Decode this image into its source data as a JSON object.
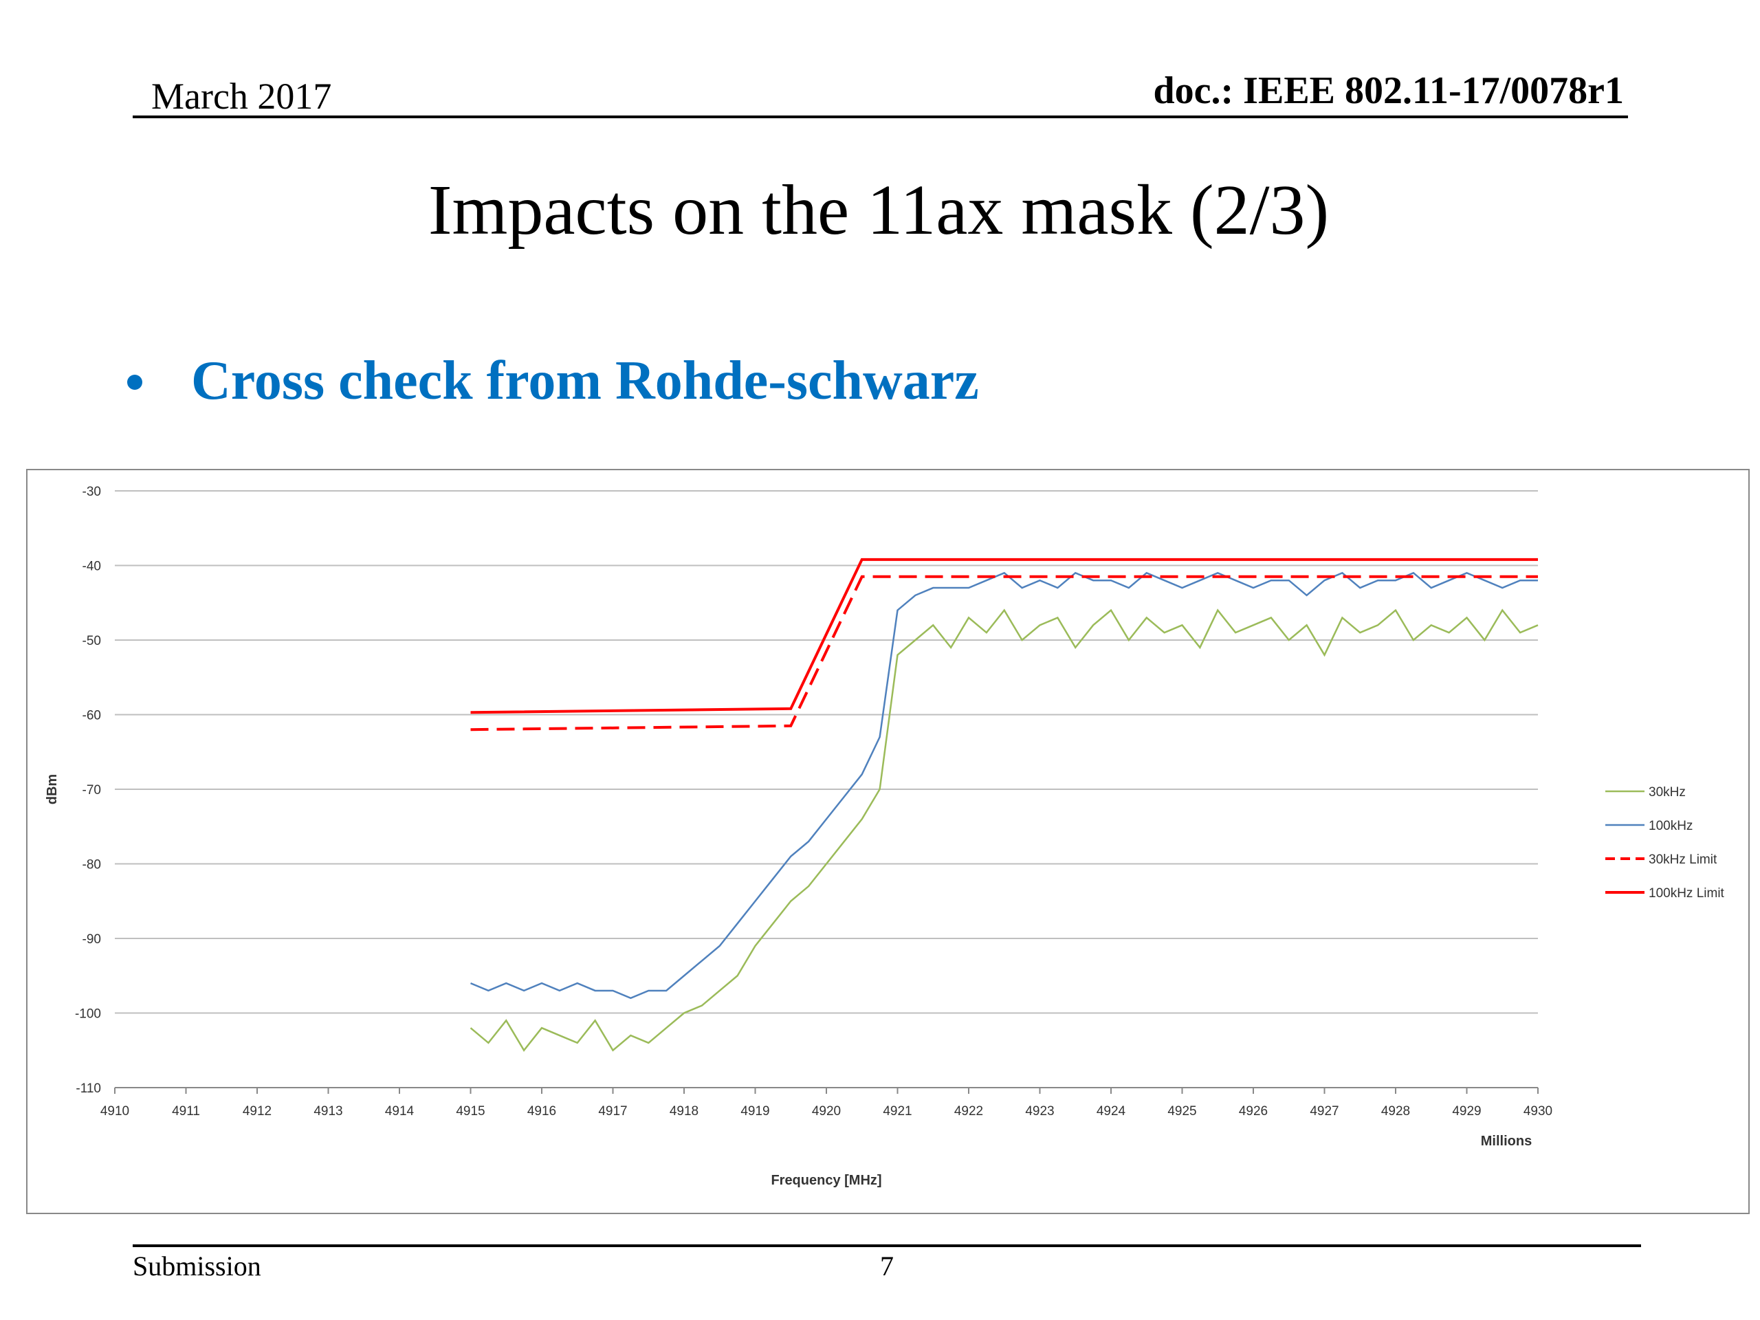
{
  "header": {
    "date": "March 2017",
    "doc": "doc.: IEEE 802.11-17/0078r1"
  },
  "title": "Impacts on the 11ax mask (2/3)",
  "bullets": [
    "Cross check from Rohde-schwarz"
  ],
  "footer": {
    "left": "Submission",
    "page": "7"
  },
  "chart_data": {
    "type": "line",
    "x_label": "Frequency [MHz]",
    "x_unit_label": "Millions",
    "y_label": "dBm",
    "xlim": [
      4910,
      4930
    ],
    "xticks": [
      4910,
      4911,
      4912,
      4913,
      4914,
      4915,
      4916,
      4917,
      4918,
      4919,
      4920,
      4921,
      4922,
      4923,
      4924,
      4925,
      4926,
      4927,
      4928,
      4929,
      4930
    ],
    "ylim": [
      -110,
      -30
    ],
    "yticks": [
      -110,
      -100,
      -90,
      -80,
      -70,
      -60,
      -50,
      -40,
      -30
    ],
    "grid": true,
    "legend": "right",
    "x": [
      4915,
      4915.25,
      4915.5,
      4915.75,
      4916,
      4916.25,
      4916.5,
      4916.75,
      4917,
      4917.25,
      4917.5,
      4917.75,
      4918,
      4918.25,
      4918.5,
      4918.75,
      4919,
      4919.25,
      4919.5,
      4919.75,
      4920,
      4920.25,
      4920.5,
      4920.75,
      4921,
      4921.25,
      4921.5,
      4921.75,
      4922,
      4922.25,
      4922.5,
      4922.75,
      4923,
      4923.25,
      4923.5,
      4923.75,
      4924,
      4924.25,
      4924.5,
      4924.75,
      4925,
      4925.25,
      4925.5,
      4925.75,
      4926,
      4926.25,
      4926.5,
      4926.75,
      4927,
      4927.25,
      4927.5,
      4927.75,
      4928,
      4928.25,
      4928.5,
      4928.75,
      4929,
      4929.25,
      4929.5,
      4929.75,
      4930
    ],
    "series": [
      {
        "name": "30kHz",
        "color": "#9bbb59",
        "dashed": false,
        "values": [
          -102,
          -104,
          -101,
          -105,
          -102,
          -103,
          -104,
          -101,
          -105,
          -103,
          -104,
          -102,
          -100,
          -99,
          -97,
          -95,
          -91,
          -88,
          -85,
          -83,
          -80,
          -77,
          -74,
          -70,
          -52,
          -50,
          -48,
          -51,
          -47,
          -49,
          -46,
          -50,
          -48,
          -47,
          -51,
          -48,
          -46,
          -50,
          -47,
          -49,
          -48,
          -51,
          -46,
          -49,
          -48,
          -47,
          -50,
          -48,
          -52,
          -47,
          -49,
          -48,
          -46,
          -50,
          -48,
          -49,
          -47,
          -50,
          -46,
          -49,
          -48
        ]
      },
      {
        "name": "100kHz",
        "color": "#4f81bd",
        "dashed": false,
        "values": [
          -96,
          -97,
          -96,
          -97,
          -96,
          -97,
          -96,
          -97,
          -97,
          -98,
          -97,
          -97,
          -95,
          -93,
          -91,
          -88,
          -85,
          -82,
          -79,
          -77,
          -74,
          -71,
          -68,
          -63,
          -46,
          -44,
          -43,
          -43,
          -43,
          -42,
          -41,
          -43,
          -42,
          -43,
          -41,
          -42,
          -42,
          -43,
          -41,
          -42,
          -43,
          -42,
          -41,
          -42,
          -43,
          -42,
          -42,
          -44,
          -42,
          -41,
          -43,
          -42,
          -42,
          -41,
          -43,
          -42,
          -41,
          -42,
          -43,
          -42,
          -42
        ]
      },
      {
        "name": "30kHz Limit",
        "color": "#ff0000",
        "dashed": true,
        "x": [
          4915,
          4919.5,
          4920.5,
          4930
        ],
        "values": [
          -62,
          -61.5,
          -41.5,
          -41.5
        ]
      },
      {
        "name": "100kHz Limit",
        "color": "#ff0000",
        "dashed": false,
        "x": [
          4915,
          4919.5,
          4920.5,
          4930
        ],
        "values": [
          -59.7,
          -59.2,
          -39.2,
          -39.2
        ]
      }
    ]
  }
}
